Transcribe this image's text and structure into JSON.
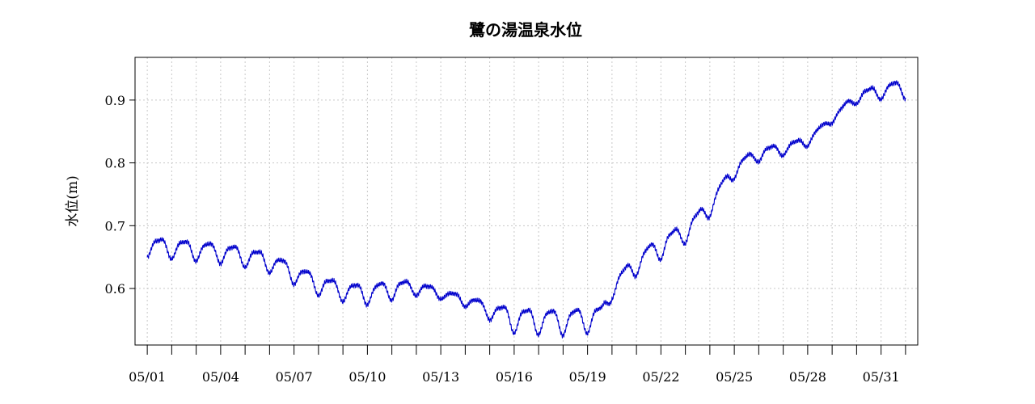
{
  "chart_data": {
    "type": "line",
    "title": "鷺の湯温泉水位",
    "xlabel": "",
    "ylabel": "水位(m)",
    "ylim": [
      0.51,
      0.968
    ],
    "xlim_days": [
      -0.5,
      31.5
    ],
    "yticks": [
      {
        "label": "0.6",
        "value": 0.6
      },
      {
        "label": "0.7",
        "value": 0.7
      },
      {
        "label": "0.8",
        "value": 0.8
      },
      {
        "label": "0.9",
        "value": 0.9
      }
    ],
    "xtick_days": [
      0,
      1,
      2,
      3,
      4,
      5,
      6,
      7,
      8,
      9,
      10,
      11,
      12,
      13,
      14,
      15,
      16,
      17,
      18,
      19,
      20,
      21,
      22,
      23,
      24,
      25,
      26,
      27,
      28,
      29,
      30,
      31
    ],
    "xtick_labels": [
      {
        "label": "05/01",
        "day": 0
      },
      {
        "label": "05/04",
        "day": 3
      },
      {
        "label": "05/07",
        "day": 6
      },
      {
        "label": "05/10",
        "day": 9
      },
      {
        "label": "05/13",
        "day": 12
      },
      {
        "label": "05/16",
        "day": 15
      },
      {
        "label": "05/19",
        "day": 18
      },
      {
        "label": "05/22",
        "day": 21
      },
      {
        "label": "05/25",
        "day": 24
      },
      {
        "label": "05/28",
        "day": 27
      },
      {
        "label": "05/31",
        "day": 30
      }
    ],
    "grid": true,
    "series": [
      {
        "color": "#0000cc",
        "trend": [
          [
            0.0,
            0.668
          ],
          [
            1.0,
            0.665
          ],
          [
            2.0,
            0.662
          ],
          [
            3.0,
            0.658
          ],
          [
            4.0,
            0.652
          ],
          [
            5.0,
            0.643
          ],
          [
            6.0,
            0.625
          ],
          [
            7.0,
            0.607
          ],
          [
            8.0,
            0.597
          ],
          [
            9.0,
            0.592
          ],
          [
            10.0,
            0.6
          ],
          [
            11.0,
            0.602
          ],
          [
            11.8,
            0.594
          ],
          [
            12.3,
            0.588
          ],
          [
            13.0,
            0.582
          ],
          [
            14.0,
            0.565
          ],
          [
            15.0,
            0.552
          ],
          [
            16.0,
            0.55
          ],
          [
            17.0,
            0.549
          ],
          [
            18.0,
            0.552
          ],
          [
            18.6,
            0.558
          ],
          [
            19.0,
            0.6
          ],
          [
            20.0,
            0.64
          ],
          [
            21.0,
            0.668
          ],
          [
            22.0,
            0.69
          ],
          [
            23.0,
            0.73
          ],
          [
            24.0,
            0.79
          ],
          [
            25.0,
            0.815
          ],
          [
            26.0,
            0.822
          ],
          [
            27.0,
            0.835
          ],
          [
            28.0,
            0.87
          ],
          [
            29.0,
            0.905
          ],
          [
            30.0,
            0.915
          ],
          [
            31.0,
            0.92
          ]
        ],
        "amplitude": [
          [
            0.0,
            0.017
          ],
          [
            10.0,
            0.017
          ],
          [
            12.0,
            0.008
          ],
          [
            13.0,
            0.01
          ],
          [
            14.0,
            0.014
          ],
          [
            15.0,
            0.022
          ],
          [
            18.0,
            0.022
          ],
          [
            19.0,
            0.016
          ],
          [
            21.0,
            0.02
          ],
          [
            23.0,
            0.015
          ],
          [
            25.0,
            0.012
          ],
          [
            27.0,
            0.008
          ],
          [
            28.0,
            0.006
          ],
          [
            29.0,
            0.01
          ],
          [
            31.0,
            0.016
          ]
        ]
      }
    ]
  }
}
